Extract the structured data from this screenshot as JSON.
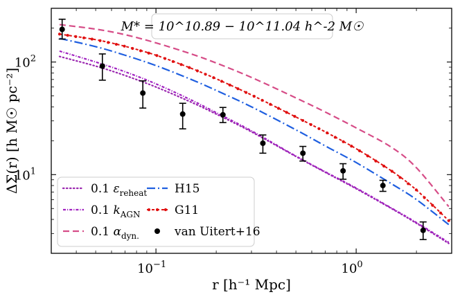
{
  "chart_data": {
    "type": "line",
    "title": "",
    "annotation": "M* = 10^10.89 − 10^11.04 h^-2 M☉",
    "xlabel": "r [h⁻¹ Mpc]",
    "ylabel": "ΔΣ(r) [h M☉ pc⁻²]",
    "xscale": "log",
    "yscale": "log",
    "xlim": [
      0.03,
      3.0
    ],
    "ylim": [
      2.0,
      300
    ],
    "xticks": [
      {
        "value": 0.1,
        "label": "10⁻¹"
      },
      {
        "value": 1,
        "label": "10⁰"
      }
    ],
    "yticks": [
      {
        "value": 10,
        "label": "10¹"
      },
      {
        "value": 100,
        "label": "10²"
      }
    ],
    "legend_position": "lower-left",
    "series": [
      {
        "name": "0.1 ε_reheat",
        "label_main": "0.1 ",
        "label_sym": "ε",
        "label_sub": "reheat",
        "style": "dotted",
        "color": "#9b27b0",
        "x": [
          0.033,
          0.05,
          0.07,
          0.1,
          0.15,
          0.2,
          0.3,
          0.5,
          0.7,
          1.0,
          1.5,
          2.0,
          2.9
        ],
        "y": [
          112,
          92,
          76,
          60,
          44,
          34.5,
          24,
          14.5,
          10.5,
          7.5,
          5.0,
          3.7,
          2.45
        ]
      },
      {
        "name": "0.1 k_AGN",
        "label_main": "0.1 ",
        "label_sym": "k",
        "label_sub": "AGN",
        "style": "dashdot-fine",
        "color": "#a020c0",
        "x": [
          0.033,
          0.05,
          0.07,
          0.1,
          0.15,
          0.2,
          0.3,
          0.5,
          0.7,
          1.0,
          1.5,
          2.0,
          2.9
        ],
        "y": [
          125,
          100,
          82,
          64,
          46,
          35.5,
          24.5,
          14.6,
          10.6,
          7.6,
          5.05,
          3.75,
          2.5
        ]
      },
      {
        "name": "0.1 α_dyn.",
        "label_main": "0.1 ",
        "label_sym": "α",
        "label_sub": "dyn.",
        "style": "dashed",
        "color": "#d64c87",
        "x": [
          0.033,
          0.05,
          0.07,
          0.1,
          0.15,
          0.2,
          0.3,
          0.5,
          0.7,
          1.0,
          1.5,
          2.0,
          2.9
        ],
        "y": [
          215,
          196,
          175,
          148,
          118,
          98,
          73,
          48,
          36,
          26,
          17.5,
          11.5,
          5.2
        ]
      },
      {
        "name": "H15",
        "label_main": "H15",
        "label_sym": "",
        "label_sub": "",
        "style": "dashdot",
        "color": "#1f5fe0",
        "x": [
          0.033,
          0.05,
          0.07,
          0.1,
          0.15,
          0.2,
          0.3,
          0.5,
          0.7,
          1.0,
          1.5,
          2.0,
          2.9
        ],
        "y": [
          162,
          137,
          115,
          93,
          70,
          56,
          40,
          25,
          18,
          12.8,
          8.3,
          6.0,
          3.6
        ]
      },
      {
        "name": "G11",
        "label_main": "G11",
        "label_sym": "",
        "label_sub": "",
        "style": "dot-line",
        "color": "#e01010",
        "x": [
          0.033,
          0.05,
          0.07,
          0.1,
          0.15,
          0.2,
          0.3,
          0.5,
          0.7,
          1.0,
          1.5,
          2.0,
          2.9
        ],
        "y": [
          177,
          158,
          138,
          115,
          88,
          71,
          51,
          32.5,
          24,
          17,
          10.8,
          7.3,
          3.9
        ]
      }
    ],
    "observations": {
      "name": "van Uitert+16",
      "color": "#000000",
      "points": [
        {
          "x": 0.034,
          "y": 195,
          "lo": 160,
          "hi": 240
        },
        {
          "x": 0.054,
          "y": 92,
          "lo": 69,
          "hi": 118
        },
        {
          "x": 0.086,
          "y": 53,
          "lo": 39,
          "hi": 68
        },
        {
          "x": 0.136,
          "y": 34.5,
          "lo": 25.5,
          "hi": 43
        },
        {
          "x": 0.216,
          "y": 34,
          "lo": 29,
          "hi": 39.5
        },
        {
          "x": 0.342,
          "y": 19,
          "lo": 15.5,
          "hi": 22.5
        },
        {
          "x": 0.542,
          "y": 15.5,
          "lo": 13.2,
          "hi": 17.8
        },
        {
          "x": 0.86,
          "y": 10.8,
          "lo": 9.1,
          "hi": 12.5
        },
        {
          "x": 1.36,
          "y": 8.0,
          "lo": 7.1,
          "hi": 8.9
        },
        {
          "x": 2.16,
          "y": 3.2,
          "lo": 2.65,
          "hi": 3.8
        }
      ]
    }
  }
}
